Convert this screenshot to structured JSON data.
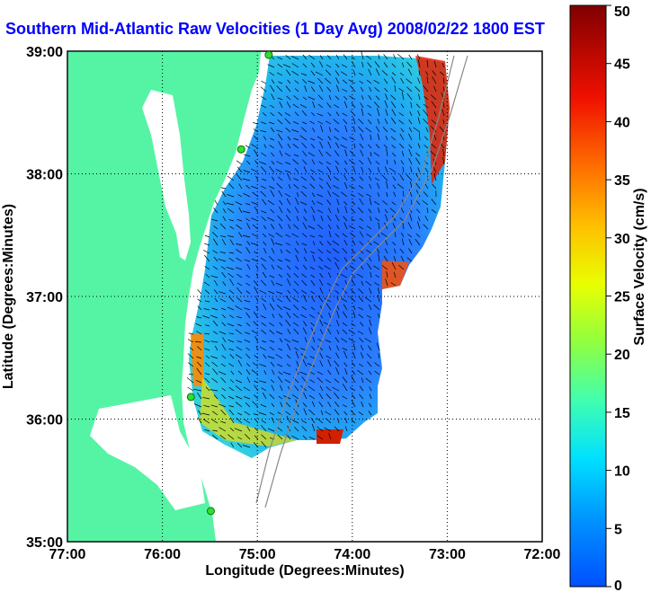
{
  "chart_data": {
    "type": "heatmap",
    "title": "Southern Mid-Atlantic Raw Velocities (1 Day Avg) 2008/02/22 1800 EST",
    "xlabel": "Longitude (Degrees:Minutes)",
    "ylabel": "Latitude (Degrees:Minutes)",
    "x_ticks": [
      "77:00",
      "76:00",
      "75:00",
      "74:00",
      "73:00",
      "72:00"
    ],
    "y_ticks": [
      "39:00",
      "38:00",
      "37:00",
      "36:00",
      "35:00"
    ],
    "xlim": [
      -77,
      -72
    ],
    "ylim": [
      35,
      39
    ],
    "grid": true,
    "colorbar": {
      "label": "Surface Velocity (cm/s)",
      "range": [
        0,
        50
      ],
      "ticks": [
        0,
        5,
        10,
        15,
        20,
        25,
        30,
        35,
        40,
        45,
        50
      ],
      "colors": [
        "#0050ff",
        "#00b4ff",
        "#00ffff",
        "#40ff60",
        "#c0ff00",
        "#ffff00",
        "#ffa000",
        "#ff4000",
        "#e00000",
        "#800000"
      ]
    },
    "colors": {
      "land": "#55f4a5",
      "title": "#0000ff",
      "station": "#33dd33"
    },
    "stations": [
      {
        "lon": -74.88,
        "lat": 38.97
      },
      {
        "lon": -75.17,
        "lat": 38.2
      },
      {
        "lon": -75.7,
        "lat": 36.18
      },
      {
        "lon": -75.49,
        "lat": 35.25
      }
    ]
  }
}
